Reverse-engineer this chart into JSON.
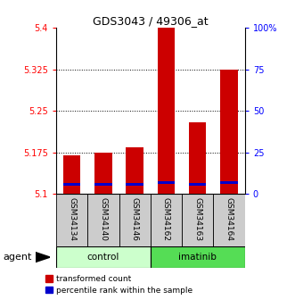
{
  "title": "GDS3043 / 49306_at",
  "samples": [
    "GSM34134",
    "GSM34140",
    "GSM34146",
    "GSM34162",
    "GSM34163",
    "GSM34164"
  ],
  "transformed_counts": [
    5.17,
    5.175,
    5.185,
    5.4,
    5.23,
    5.325
  ],
  "percentile_values": [
    5.118,
    5.118,
    5.118,
    5.12,
    5.118,
    5.12
  ],
  "y_min": 5.1,
  "y_max": 5.4,
  "y_ticks_left": [
    5.1,
    5.175,
    5.25,
    5.325,
    5.4
  ],
  "y_ticks_right": [
    0,
    25,
    50,
    75,
    100
  ],
  "bar_width": 0.55,
  "red_color": "#cc0000",
  "blue_color": "#0000cc",
  "control_bg": "#ccffcc",
  "imatinib_bg": "#55dd55",
  "label_bg": "#cccccc",
  "blue_bar_height": 0.005
}
